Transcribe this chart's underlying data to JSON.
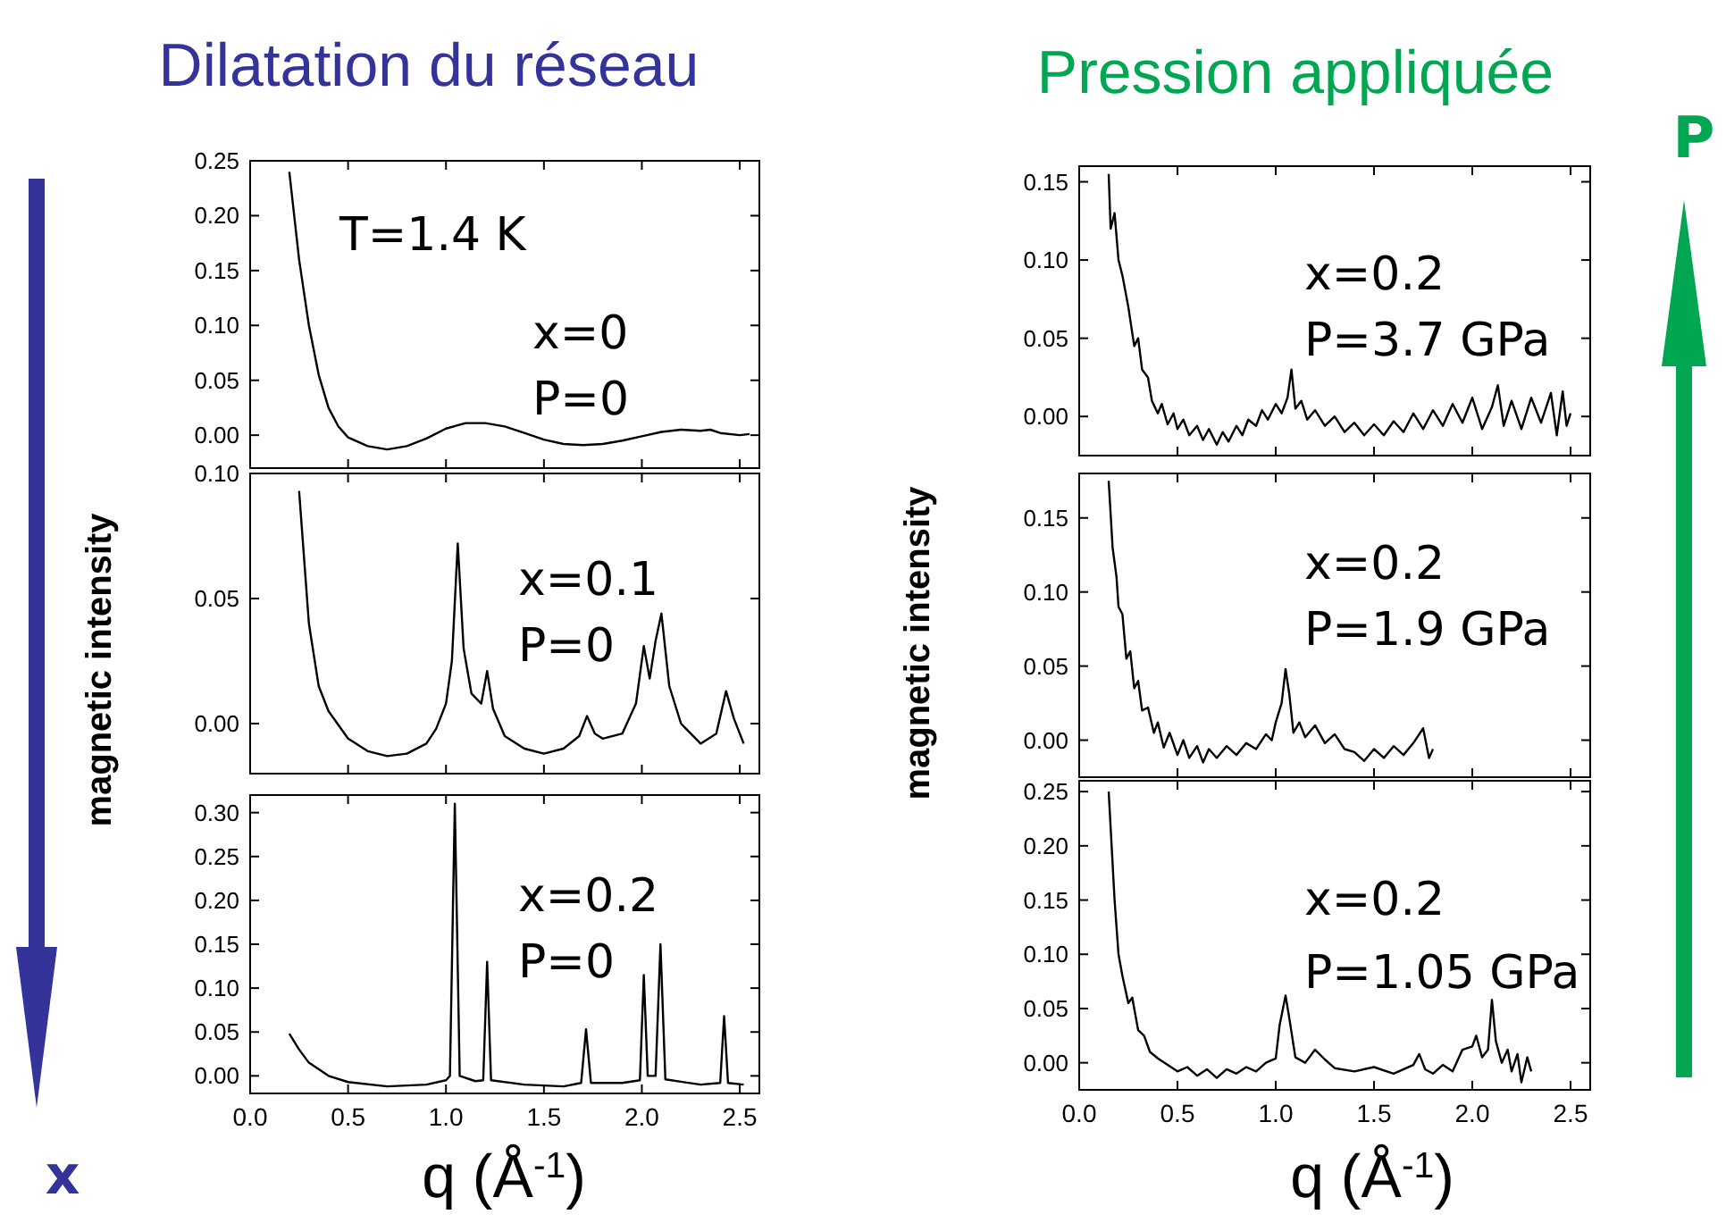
{
  "chart_data": [
    {
      "type": "line",
      "title": "Dilatation du réseau",
      "annotations": [
        "T=1.4 K",
        "x=0",
        "P=0"
      ],
      "tick_labels": "y",
      "xlim": [
        0,
        2.6
      ],
      "ylim": [
        -0.03,
        0.25
      ],
      "xticks": [
        {
          "value": 0,
          "label": null
        },
        {
          "value": 0.5,
          "label": null
        },
        {
          "value": 1,
          "label": null
        },
        {
          "value": 1.5,
          "label": null
        },
        {
          "value": 2,
          "label": null
        },
        {
          "value": 2.5,
          "label": null
        }
      ],
      "yticks": [
        {
          "value": 0,
          "label": "0.00"
        },
        {
          "value": 0.05,
          "label": "0.05"
        },
        {
          "value": 0.1,
          "label": "0.10"
        },
        {
          "value": 0.15,
          "label": "0.15"
        },
        {
          "value": 0.2,
          "label": "0.20"
        },
        {
          "value": 0.25,
          "label": "0.25"
        }
      ],
      "series": [
        {
          "color": "#000000",
          "x": [
            0.2,
            0.25,
            0.3,
            0.35,
            0.4,
            0.45,
            0.5,
            0.6,
            0.7,
            0.8,
            0.9,
            1.0,
            1.1,
            1.2,
            1.3,
            1.4,
            1.5,
            1.6,
            1.7,
            1.8,
            1.9,
            2.0,
            2.1,
            2.2,
            2.3,
            2.35,
            2.4,
            2.5,
            2.55
          ],
          "values": [
            0.24,
            0.16,
            0.1,
            0.055,
            0.025,
            0.008,
            -0.002,
            -0.01,
            -0.013,
            -0.01,
            -0.003,
            0.006,
            0.011,
            0.011,
            0.008,
            0.002,
            -0.004,
            -0.008,
            -0.009,
            -0.008,
            -0.005,
            -0.001,
            0.003,
            0.005,
            0.004,
            0.005,
            0.002,
            0.0,
            0.001
          ]
        }
      ]
    },
    {
      "type": "line",
      "ylabel": "magnetic intensity",
      "annotations": [
        "x=0.1",
        "P=0"
      ],
      "tick_labels": "y",
      "xlim": [
        0,
        2.6
      ],
      "ylim": [
        -0.02,
        0.1
      ],
      "xticks": [
        {
          "value": 0,
          "label": null
        },
        {
          "value": 0.5,
          "label": null
        },
        {
          "value": 1,
          "label": null
        },
        {
          "value": 1.5,
          "label": null
        },
        {
          "value": 2,
          "label": null
        },
        {
          "value": 2.5,
          "label": null
        }
      ],
      "yticks": [
        {
          "value": 0,
          "label": "0.00"
        },
        {
          "value": 0.05,
          "label": "0.05"
        },
        {
          "value": 0.1,
          "label": "0.10"
        }
      ],
      "series": [
        {
          "color": "#000000",
          "x": [
            0.25,
            0.3,
            0.35,
            0.4,
            0.5,
            0.6,
            0.7,
            0.8,
            0.9,
            0.95,
            1.0,
            1.03,
            1.06,
            1.09,
            1.13,
            1.18,
            1.21,
            1.24,
            1.3,
            1.4,
            1.5,
            1.6,
            1.68,
            1.72,
            1.76,
            1.8,
            1.9,
            1.97,
            2.01,
            2.04,
            2.07,
            2.1,
            2.14,
            2.2,
            2.3,
            2.38,
            2.43,
            2.47,
            2.52
          ],
          "values": [
            0.093,
            0.04,
            0.015,
            0.005,
            -0.006,
            -0.011,
            -0.013,
            -0.012,
            -0.008,
            -0.002,
            0.008,
            0.025,
            0.072,
            0.03,
            0.012,
            0.008,
            0.021,
            0.006,
            -0.005,
            -0.01,
            -0.012,
            -0.01,
            -0.005,
            0.003,
            -0.004,
            -0.006,
            -0.004,
            0.008,
            0.031,
            0.018,
            0.033,
            0.044,
            0.015,
            0.0,
            -0.008,
            -0.004,
            0.013,
            0.002,
            -0.008
          ]
        }
      ]
    },
    {
      "type": "line",
      "xlabel": "q (Å$^{-1}$)",
      "annotations": [
        "x=0.2",
        "P=0",
        "x"
      ],
      "xlim": [
        0,
        2.6
      ],
      "ylim": [
        -0.02,
        0.32
      ],
      "xticks": [
        {
          "value": 0,
          "label": "0.0"
        },
        {
          "value": 0.5,
          "label": "0.5"
        },
        {
          "value": 1,
          "label": "1.0"
        },
        {
          "value": 1.5,
          "label": "1.5"
        },
        {
          "value": 2,
          "label": "2.0"
        },
        {
          "value": 2.5,
          "label": "2.5"
        }
      ],
      "yticks": [
        {
          "value": 0,
          "label": "0.00"
        },
        {
          "value": 0.05,
          "label": "0.05"
        },
        {
          "value": 0.1,
          "label": "0.10"
        },
        {
          "value": 0.15,
          "label": "0.15"
        },
        {
          "value": 0.2,
          "label": "0.20"
        },
        {
          "value": 0.25,
          "label": "0.25"
        },
        {
          "value": 0.3,
          "label": "0.30"
        }
      ],
      "series": [
        {
          "color": "#000000",
          "x": [
            0.2,
            0.25,
            0.3,
            0.4,
            0.5,
            0.7,
            0.9,
            1.0,
            1.02,
            1.045,
            1.07,
            1.15,
            1.19,
            1.21,
            1.23,
            1.4,
            1.6,
            1.69,
            1.715,
            1.74,
            1.9,
            1.99,
            2.01,
            2.03,
            2.07,
            2.095,
            2.12,
            2.3,
            2.4,
            2.42,
            2.44,
            2.52
          ],
          "values": [
            0.048,
            0.03,
            0.015,
            0.0,
            -0.007,
            -0.012,
            -0.01,
            -0.005,
            0.0,
            0.31,
            0.0,
            -0.006,
            -0.005,
            0.13,
            -0.005,
            -0.01,
            -0.012,
            -0.008,
            0.053,
            -0.008,
            -0.008,
            -0.005,
            0.115,
            0.0,
            0.0,
            0.15,
            -0.004,
            -0.01,
            -0.008,
            0.068,
            -0.008,
            -0.01
          ]
        }
      ]
    },
    {
      "type": "line",
      "title": "Pression appliquée",
      "annotations": [
        "x=0.2",
        "P=3.7 GPa",
        "P"
      ],
      "tick_labels": "y",
      "xlim": [
        0,
        2.6
      ],
      "ylim": [
        -0.025,
        0.16
      ],
      "xticks": [
        {
          "value": 0,
          "label": null
        },
        {
          "value": 0.5,
          "label": null
        },
        {
          "value": 1,
          "label": null
        },
        {
          "value": 1.5,
          "label": null
        },
        {
          "value": 2,
          "label": null
        },
        {
          "value": 2.5,
          "label": null
        }
      ],
      "yticks": [
        {
          "value": 0,
          "label": "0.00"
        },
        {
          "value": 0.05,
          "label": "0.05"
        },
        {
          "value": 0.1,
          "label": "0.10"
        },
        {
          "value": 0.15,
          "label": "0.15"
        }
      ],
      "series": [
        {
          "color": "#000000",
          "x": [
            0.15,
            0.16,
            0.18,
            0.2,
            0.22,
            0.25,
            0.28,
            0.3,
            0.32,
            0.35,
            0.37,
            0.4,
            0.42,
            0.45,
            0.48,
            0.5,
            0.53,
            0.56,
            0.6,
            0.63,
            0.66,
            0.7,
            0.73,
            0.76,
            0.8,
            0.83,
            0.86,
            0.9,
            0.93,
            0.96,
            1.0,
            1.03,
            1.06,
            1.08,
            1.1,
            1.13,
            1.16,
            1.2,
            1.25,
            1.3,
            1.35,
            1.4,
            1.45,
            1.5,
            1.55,
            1.6,
            1.65,
            1.7,
            1.75,
            1.8,
            1.85,
            1.9,
            1.95,
            2.0,
            2.05,
            2.1,
            2.13,
            2.16,
            2.2,
            2.25,
            2.3,
            2.35,
            2.4,
            2.43,
            2.46,
            2.48,
            2.5
          ],
          "values": [
            0.155,
            0.12,
            0.13,
            0.1,
            0.09,
            0.07,
            0.045,
            0.05,
            0.03,
            0.025,
            0.01,
            0.002,
            0.008,
            -0.005,
            0.002,
            -0.008,
            -0.002,
            -0.012,
            -0.006,
            -0.015,
            -0.008,
            -0.018,
            -0.01,
            -0.016,
            -0.006,
            -0.012,
            -0.002,
            -0.006,
            0.004,
            -0.002,
            0.008,
            0.002,
            0.012,
            0.03,
            0.005,
            0.01,
            -0.002,
            0.004,
            -0.006,
            0.0,
            -0.01,
            -0.004,
            -0.012,
            -0.005,
            -0.012,
            -0.003,
            -0.01,
            0.002,
            -0.008,
            0.004,
            -0.006,
            0.008,
            -0.004,
            0.012,
            -0.008,
            0.006,
            0.02,
            -0.006,
            0.01,
            -0.008,
            0.012,
            -0.004,
            0.015,
            -0.012,
            0.016,
            -0.006,
            0.002
          ]
        }
      ]
    },
    {
      "type": "line",
      "ylabel": "magnetic intensity",
      "annotations": [
        "x=0.2",
        "P=1.9 GPa"
      ],
      "tick_labels": "y",
      "xlim": [
        0,
        2.6
      ],
      "ylim": [
        -0.025,
        0.18
      ],
      "xticks": [
        {
          "value": 0,
          "label": null
        },
        {
          "value": 0.5,
          "label": null
        },
        {
          "value": 1,
          "label": null
        },
        {
          "value": 1.5,
          "label": null
        },
        {
          "value": 2,
          "label": null
        },
        {
          "value": 2.5,
          "label": null
        }
      ],
      "yticks": [
        {
          "value": 0,
          "label": "0.00"
        },
        {
          "value": 0.05,
          "label": "0.05"
        },
        {
          "value": 0.1,
          "label": "0.10"
        },
        {
          "value": 0.15,
          "label": "0.15"
        }
      ],
      "series": [
        {
          "color": "#000000",
          "x": [
            0.15,
            0.17,
            0.19,
            0.2,
            0.22,
            0.24,
            0.26,
            0.28,
            0.3,
            0.32,
            0.35,
            0.38,
            0.4,
            0.43,
            0.46,
            0.5,
            0.53,
            0.56,
            0.6,
            0.63,
            0.66,
            0.7,
            0.75,
            0.8,
            0.85,
            0.9,
            0.95,
            0.98,
            1.0,
            1.03,
            1.05,
            1.07,
            1.09,
            1.12,
            1.15,
            1.2,
            1.25,
            1.3,
            1.35,
            1.4,
            1.45,
            1.5,
            1.55,
            1.6,
            1.65,
            1.7,
            1.75,
            1.78,
            1.8
          ],
          "values": [
            0.175,
            0.13,
            0.11,
            0.09,
            0.085,
            0.055,
            0.06,
            0.035,
            0.04,
            0.02,
            0.022,
            0.005,
            0.012,
            -0.005,
            0.005,
            -0.01,
            0.0,
            -0.012,
            -0.004,
            -0.015,
            -0.006,
            -0.012,
            -0.004,
            -0.01,
            -0.002,
            -0.006,
            0.004,
            0.0,
            0.012,
            0.025,
            0.048,
            0.03,
            0.005,
            0.012,
            0.002,
            0.01,
            -0.002,
            0.004,
            -0.006,
            -0.008,
            -0.014,
            -0.006,
            -0.012,
            -0.004,
            -0.01,
            -0.002,
            0.008,
            -0.012,
            -0.006
          ]
        }
      ]
    },
    {
      "type": "line",
      "xlabel": "q (Å$^{-1}$)",
      "annotations": [
        "x=0.2",
        "P=1.05 GPa"
      ],
      "xlim": [
        0,
        2.6
      ],
      "ylim": [
        -0.025,
        0.26
      ],
      "xticks": [
        {
          "value": 0,
          "label": "0.0"
        },
        {
          "value": 0.5,
          "label": "0.5"
        },
        {
          "value": 1,
          "label": "1.0"
        },
        {
          "value": 1.5,
          "label": "1.5"
        },
        {
          "value": 2,
          "label": "2.0"
        },
        {
          "value": 2.5,
          "label": "2.5"
        }
      ],
      "yticks": [
        {
          "value": 0,
          "label": "0.00"
        },
        {
          "value": 0.05,
          "label": "0.05"
        },
        {
          "value": 0.1,
          "label": "0.10"
        },
        {
          "value": 0.15,
          "label": "0.15"
        },
        {
          "value": 0.2,
          "label": "0.20"
        },
        {
          "value": 0.25,
          "label": "0.25"
        }
      ],
      "series": [
        {
          "color": "#000000",
          "x": [
            0.15,
            0.18,
            0.2,
            0.22,
            0.25,
            0.27,
            0.3,
            0.33,
            0.36,
            0.4,
            0.45,
            0.5,
            0.55,
            0.6,
            0.65,
            0.7,
            0.75,
            0.8,
            0.85,
            0.9,
            0.95,
            1.0,
            1.02,
            1.05,
            1.07,
            1.1,
            1.15,
            1.2,
            1.25,
            1.3,
            1.4,
            1.5,
            1.6,
            1.7,
            1.73,
            1.76,
            1.8,
            1.85,
            1.9,
            1.95,
            2.0,
            2.02,
            2.05,
            2.08,
            2.1,
            2.12,
            2.15,
            2.18,
            2.2,
            2.23,
            2.25,
            2.28,
            2.3
          ],
          "values": [
            0.25,
            0.15,
            0.1,
            0.08,
            0.055,
            0.06,
            0.03,
            0.025,
            0.01,
            0.004,
            -0.002,
            -0.008,
            -0.004,
            -0.012,
            -0.006,
            -0.014,
            -0.006,
            -0.01,
            -0.004,
            -0.008,
            0.0,
            0.004,
            0.035,
            0.062,
            0.04,
            0.005,
            0.0,
            0.012,
            0.003,
            -0.005,
            -0.008,
            -0.004,
            -0.01,
            -0.002,
            0.008,
            -0.006,
            -0.01,
            -0.002,
            -0.008,
            0.012,
            0.015,
            0.025,
            0.005,
            0.012,
            0.058,
            0.02,
            0.0,
            0.012,
            -0.008,
            0.008,
            -0.018,
            0.005,
            -0.008
          ]
        }
      ]
    }
  ]
}
